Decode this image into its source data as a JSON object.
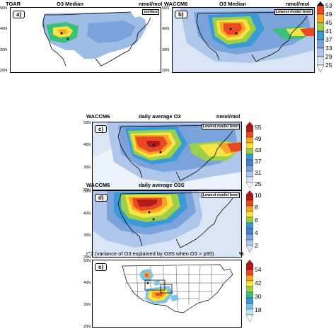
{
  "panel_a": {
    "left_title": "TOAR",
    "center_title": "O3 Median",
    "units": "nmol/mol",
    "tag": "surface",
    "label": "a)",
    "lat_ticks": [
      "50N",
      "40N",
      "30N",
      "20N"
    ]
  },
  "panel_b": {
    "left_title": "WACCM6",
    "center_title": "O3 Median",
    "units": "nmol/mol",
    "tag": "Lowest model level",
    "label": "b)",
    "lat_ticks": [
      "50N",
      "40N",
      "30N",
      "20N"
    ],
    "colorbar": [
      "53",
      "49",
      "45",
      "41",
      "37",
      "33",
      "29",
      "25"
    ]
  },
  "panel_c": {
    "left_title": "WACCM6",
    "center_title": "daily average O3",
    "units": "nmol/mol",
    "tag": "Lowest model level",
    "label": "c)",
    "lat_ticks": [
      "50N",
      "40N",
      "30N",
      "20N"
    ],
    "colorbar": [
      "55",
      "49",
      "43",
      "37",
      "31",
      "25"
    ]
  },
  "panel_d": {
    "left_title": "WACCM6",
    "center_title": "daily average O3S",
    "tag": "Lowest model level",
    "label": "d)",
    "lat_ticks": [
      "50N",
      "40N",
      "30N",
      "20N"
    ],
    "colorbar": [
      "10",
      "8",
      "6",
      "4",
      "2"
    ]
  },
  "panel_e": {
    "left_title": "r^2 (variance of O3 explained by O3S when O3 > p95)",
    "units": "%",
    "label": "e)",
    "lat_ticks": [
      "50N",
      "40N",
      "30N",
      "20N"
    ],
    "colorbar": [
      "54",
      "42",
      "30",
      "18"
    ]
  },
  "colors": {
    "c1": "#ffffff",
    "c2": "#d9e4f5",
    "c3": "#aec6ea",
    "c4": "#7aa3dc",
    "c5": "#4d7fd0",
    "c6": "#3a9ad6",
    "c7": "#3bbf7a",
    "c8": "#9dd04a",
    "c9": "#f4e542",
    "c10": "#f7a525",
    "c11": "#ea4a23",
    "c12": "#b01b1b"
  }
}
